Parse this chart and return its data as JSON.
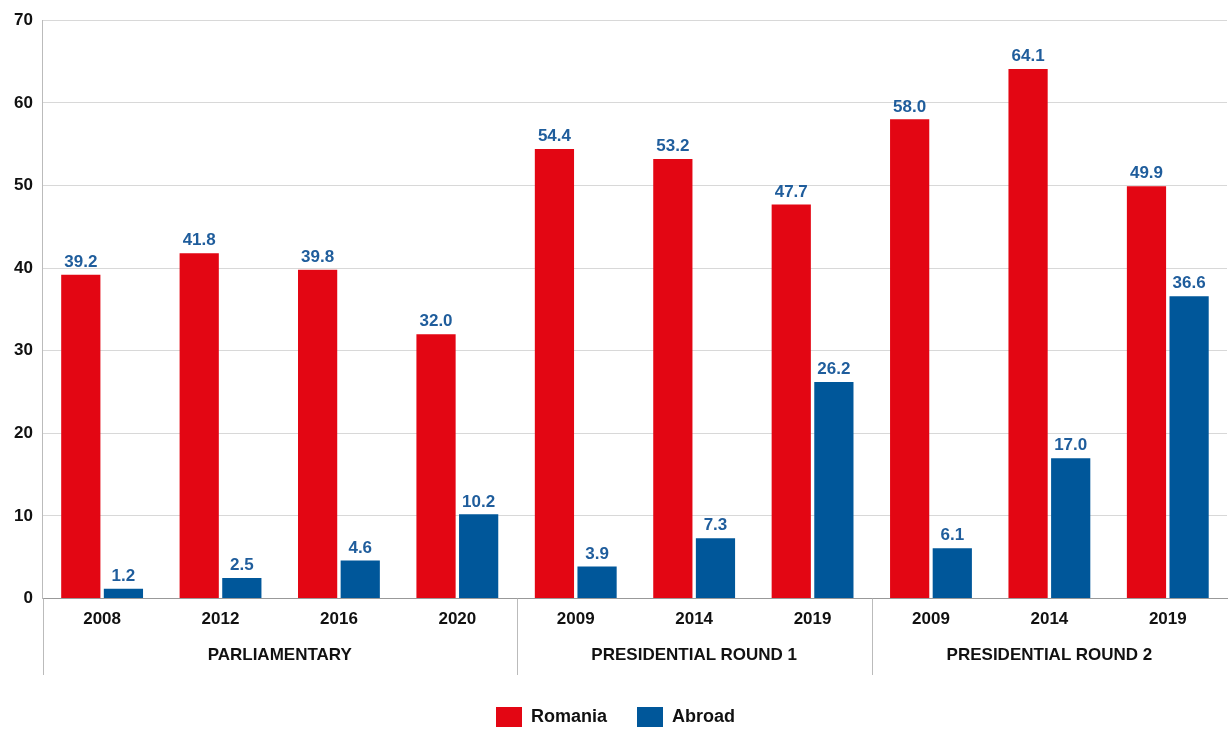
{
  "chart_data": {
    "type": "bar",
    "categories": [
      "2008",
      "2012",
      "2016",
      "2020",
      "2009",
      "2014",
      "2019",
      "2009",
      "2014",
      "2019"
    ],
    "annotations": [
      "PARLIAMENTARY",
      "PRESIDENTIAL ROUND 1",
      "PRESIDENTIAL ROUND 2"
    ],
    "series": [
      {
        "name": "Romania",
        "color": "#e30613",
        "values": [
          39.2,
          41.8,
          39.8,
          32.0,
          54.4,
          53.2,
          47.7,
          58.0,
          64.1,
          49.9
        ],
        "value_labels": [
          "39.2",
          "41.8",
          "39.8",
          "32.0",
          "54.4",
          "53.2",
          "47.7",
          "58.0",
          "64.1",
          "49.9"
        ]
      },
      {
        "name": "Abroad",
        "color": "#00579a",
        "values": [
          1.2,
          2.5,
          4.6,
          10.2,
          3.9,
          7.3,
          26.2,
          6.1,
          17.0,
          36.6
        ],
        "value_labels": [
          "1.2",
          "2.5",
          "4.6",
          "10.2",
          "3.9",
          "7.3",
          "26.2",
          "6.1",
          "17.0",
          "36.6"
        ]
      }
    ],
    "ylim": [
      0,
      70
    ],
    "yticks": [
      0,
      10,
      20,
      30,
      40,
      50,
      60,
      70
    ],
    "grid": "y",
    "legend": "bottom"
  }
}
